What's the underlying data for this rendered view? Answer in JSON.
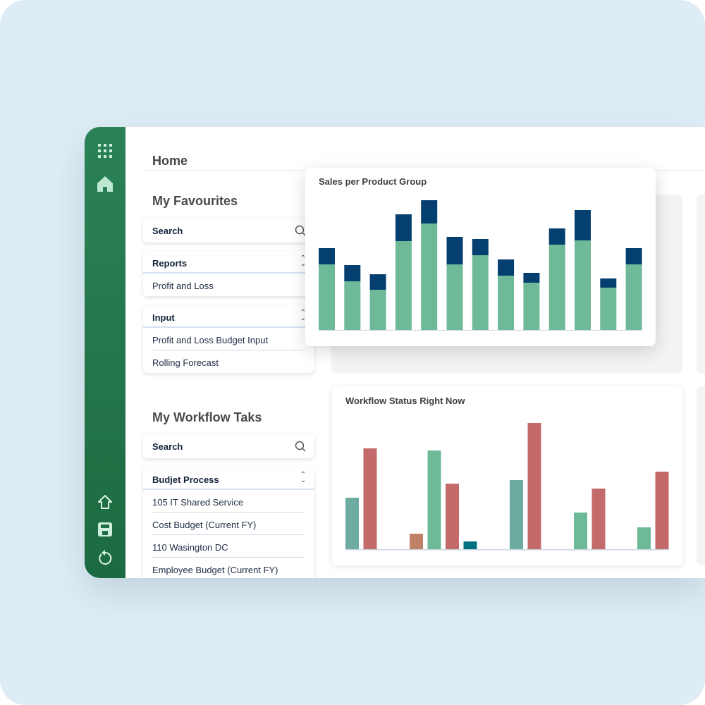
{
  "sidebar": {
    "icons": [
      "apps-grid-icon",
      "home-icon",
      "home-outline-icon",
      "save-icon",
      "refresh-icon"
    ]
  },
  "header": {
    "title": "Home"
  },
  "favourites": {
    "title": "My Favourites",
    "search_placeholder": "Search",
    "groups": [
      {
        "label": "Reports",
        "items": [
          "Profit and Loss"
        ]
      },
      {
        "label": "Input",
        "items": [
          "Profit and Loss Budget Input",
          "Rolling Forecast"
        ]
      }
    ]
  },
  "workflow": {
    "title": "My Workflow Taks",
    "search_placeholder": "Search",
    "group": {
      "label": "Budjet Process",
      "items": [
        "105 IT Shared Service",
        "Cost Budget (Current FY)",
        "110 Wasington DC",
        "Employee Budget (Current FY)"
      ]
    }
  },
  "colors": {
    "sidebar": "#227448",
    "green": "#6db998",
    "navy": "#053f6f",
    "teal": "#6caba0",
    "red": "#c56a6a",
    "brown": "#bf8168",
    "darkteal": "#00717f"
  },
  "chart_data": [
    {
      "type": "bar",
      "stacked": true,
      "title": "Sales per Product Group",
      "axes_visible": false,
      "series": [
        {
          "color": "#6db998",
          "values": [
            93,
            69,
            57,
            126,
            151,
            93,
            106,
            77,
            67,
            121,
            127,
            60,
            93
          ]
        },
        {
          "color": "#053f6f",
          "values": [
            23,
            23,
            22,
            38,
            33,
            39,
            23,
            23,
            14,
            23,
            43,
            13,
            23
          ]
        }
      ]
    },
    {
      "type": "bar",
      "title": "Workflow Status Right Now",
      "axes_visible": false,
      "groups": [
        [
          {
            "color": "#6caba0",
            "value": 73
          },
          {
            "color": "#c56a6a",
            "value": 143
          }
        ],
        [
          {
            "color": "#bf8168",
            "value": 22
          },
          {
            "color": "#6db998",
            "value": 140
          },
          {
            "color": "#c56a6a",
            "value": 93
          },
          {
            "color": "#00717f",
            "value": 11
          }
        ],
        [
          {
            "color": "#6caba0",
            "value": 98
          },
          {
            "color": "#c56a6a",
            "value": 179
          }
        ],
        [
          {
            "color": "#6db998",
            "value": 52
          },
          {
            "color": "#c56a6a",
            "value": 86
          }
        ],
        [
          {
            "color": "#6db998",
            "value": 31
          },
          {
            "color": "#c56a6a",
            "value": 110
          }
        ]
      ]
    }
  ]
}
